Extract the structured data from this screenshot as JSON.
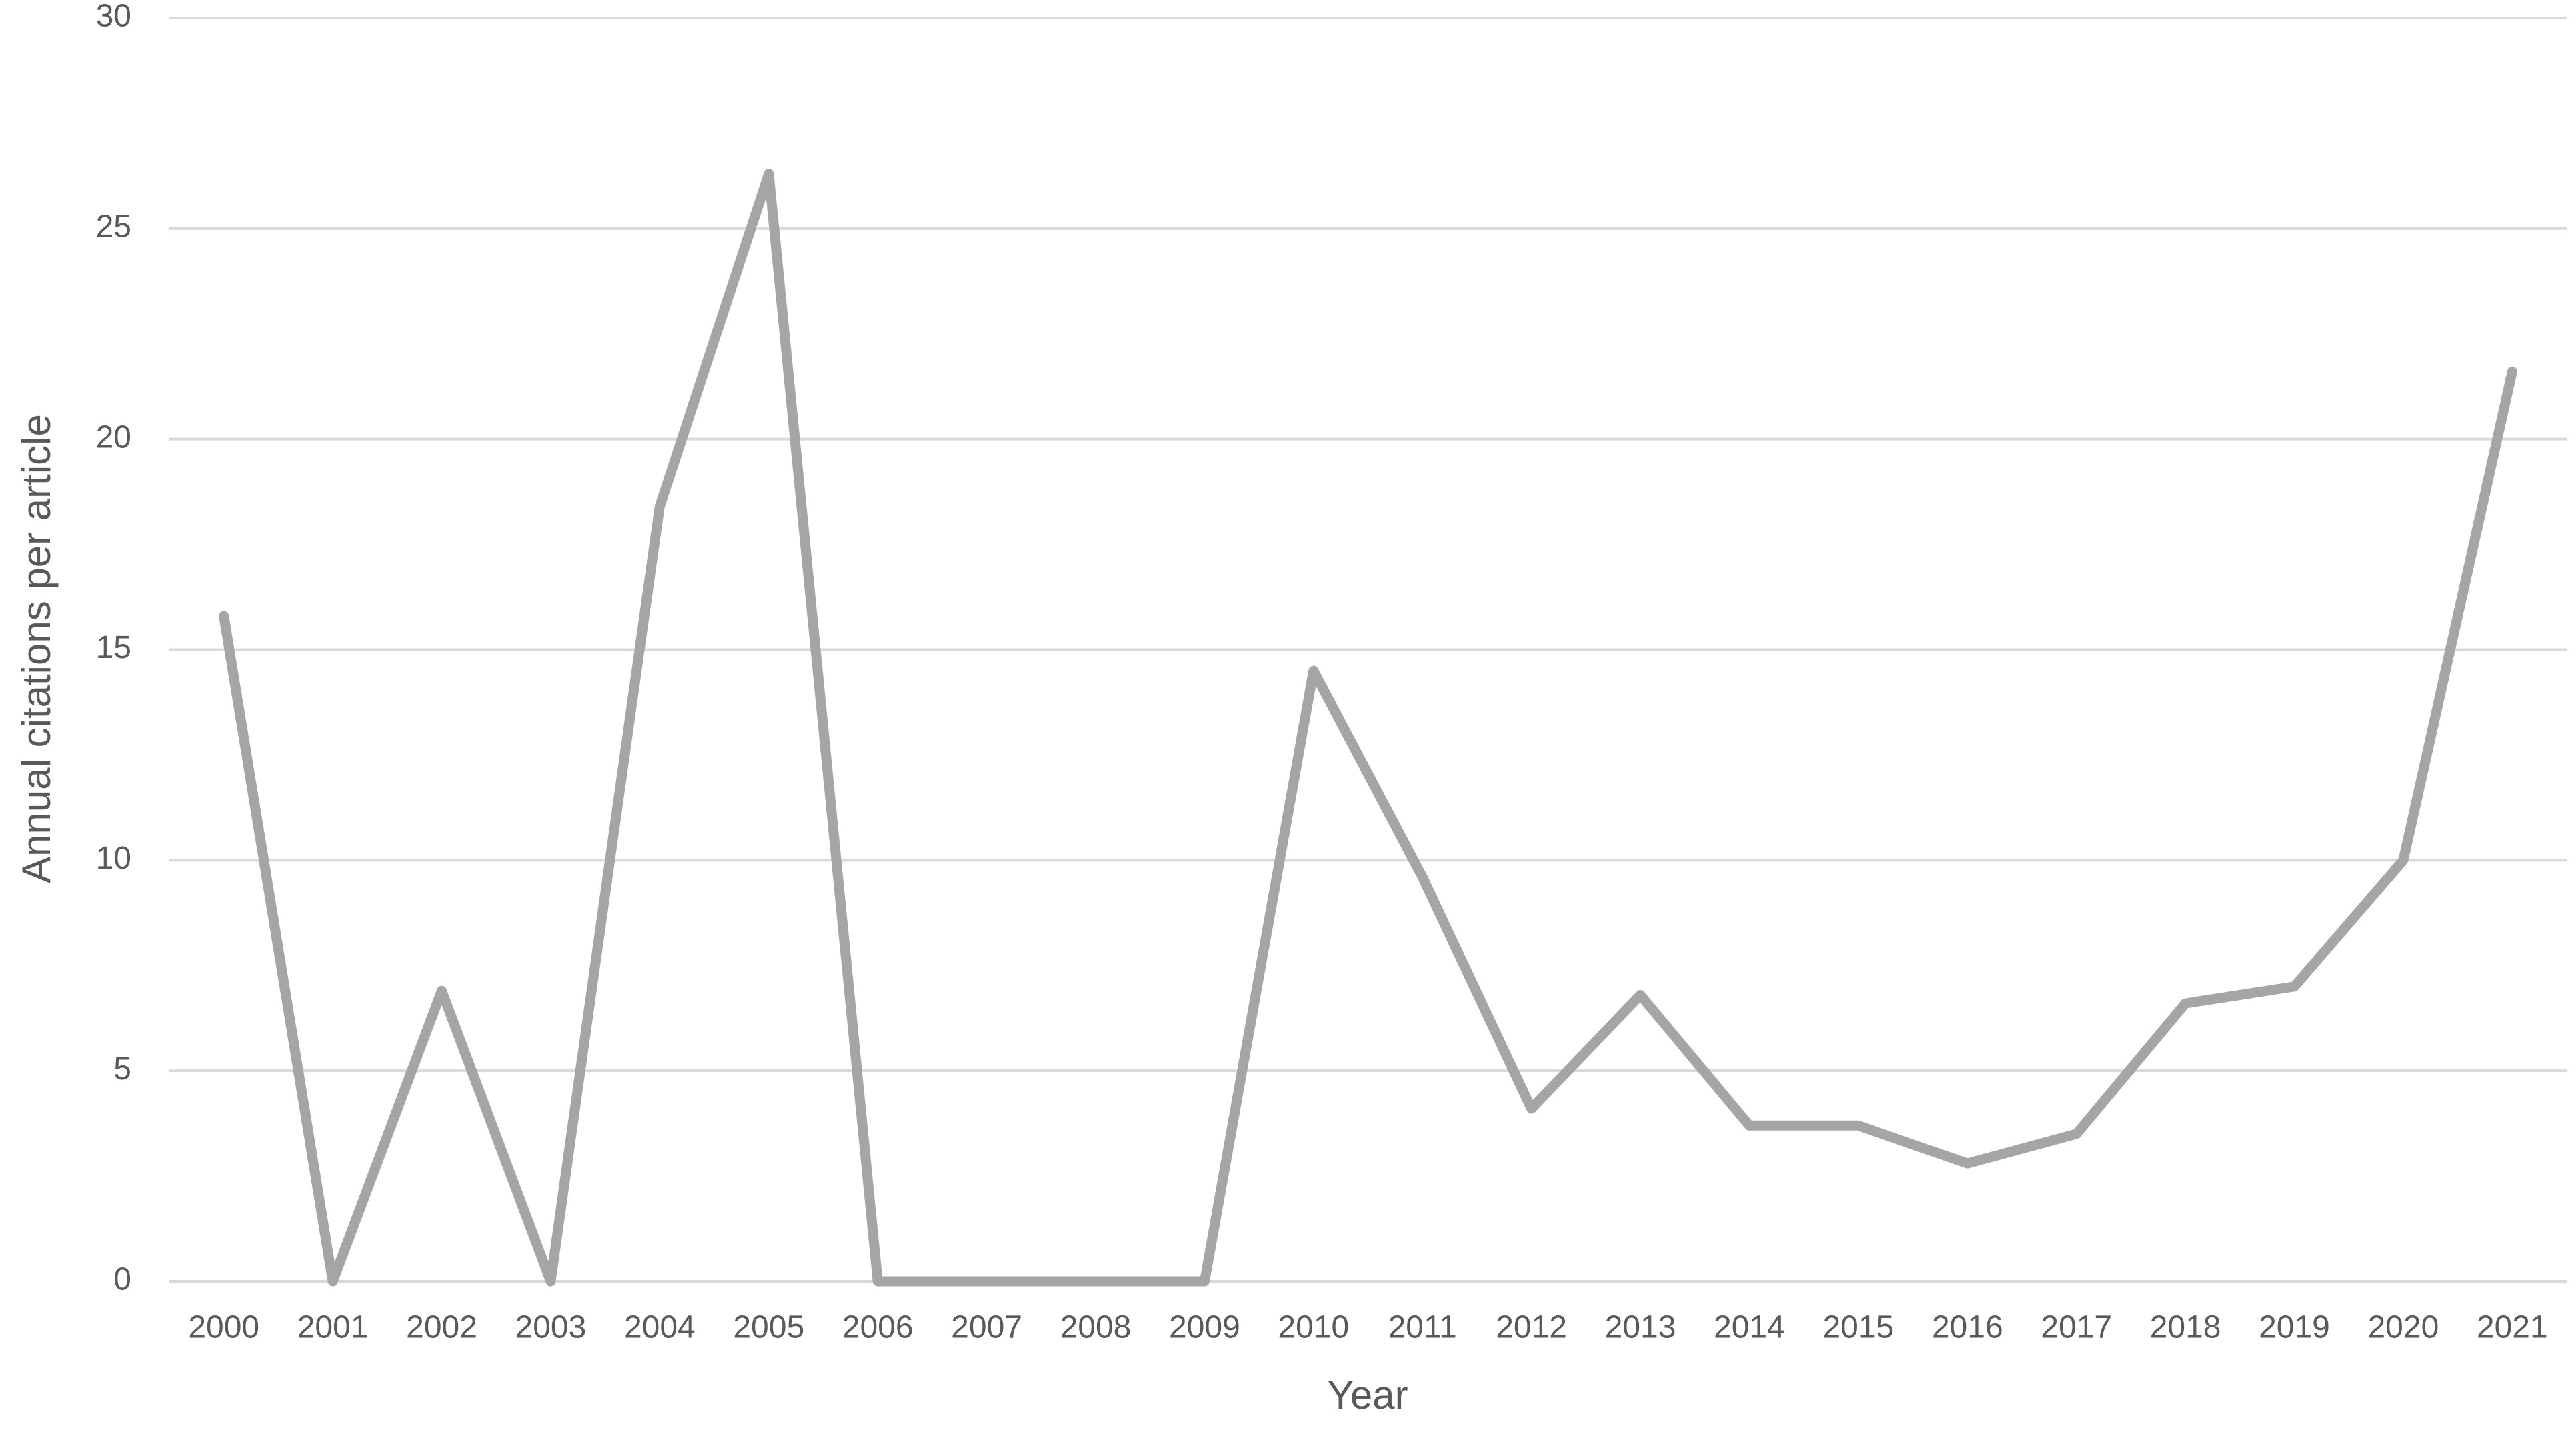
{
  "chart_data": {
    "type": "line",
    "x_label": "Year",
    "y_label": "Annual citations per article",
    "categories": [
      "2000",
      "2001",
      "2002",
      "2003",
      "2004",
      "2005",
      "2006",
      "2007",
      "2008",
      "2009",
      "2010",
      "2011",
      "2012",
      "2013",
      "2014",
      "2015",
      "2016",
      "2017",
      "2018",
      "2019",
      "2020",
      "2021"
    ],
    "values": [
      15.8,
      0,
      6.9,
      0,
      18.4,
      26.3,
      0,
      0,
      0,
      0,
      14.5,
      9.6,
      4.1,
      6.8,
      3.7,
      3.7,
      2.8,
      3.5,
      6.6,
      7.0,
      10.0,
      21.6
    ],
    "color": "#a5a5a5",
    "ylim": [
      0,
      30
    ],
    "yticks": [
      0,
      5,
      10,
      15,
      20,
      25,
      30
    ],
    "grid": true
  }
}
